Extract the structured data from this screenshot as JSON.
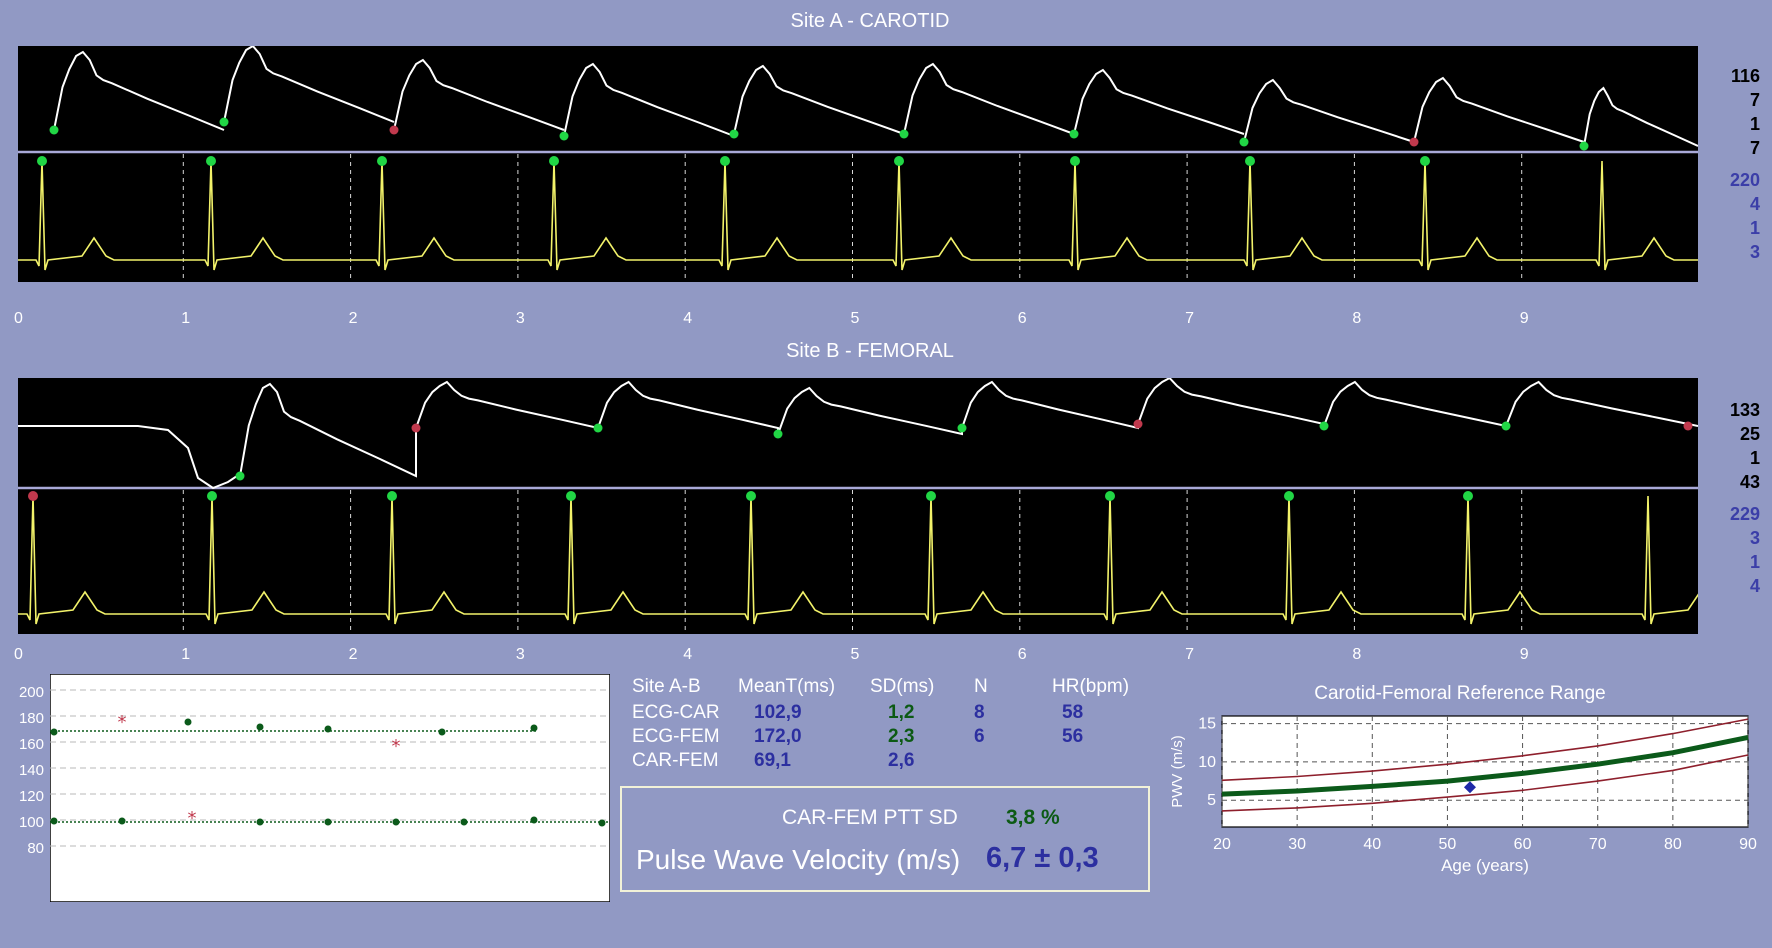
{
  "site_a": {
    "title": "Site A - CAROTID",
    "right_values_black": [
      "116",
      "7",
      "1",
      "7"
    ],
    "right_values_blue": [
      "220",
      "4",
      "1",
      "3"
    ],
    "axis_ticks": [
      "0",
      "1",
      "2",
      "3",
      "4",
      "5",
      "6",
      "7",
      "8",
      "9"
    ]
  },
  "site_b": {
    "title": "Site B - FEMORAL",
    "right_values_black": [
      "133",
      "25",
      "1",
      "43"
    ],
    "right_values_blue": [
      "229",
      "3",
      "1",
      "4"
    ],
    "axis_ticks": [
      "0",
      "1",
      "2",
      "3",
      "4",
      "5",
      "6",
      "7",
      "8",
      "9"
    ]
  },
  "ptt_plot": {
    "y_ticks": [
      "200",
      "180",
      "160",
      "140",
      "120",
      "100",
      "80"
    ]
  },
  "stats": {
    "headers": [
      "Site A-B",
      "MeanT(ms)",
      "SD(ms)",
      "N",
      "HR(bpm)"
    ],
    "rows": [
      {
        "site": "ECG-CAR",
        "mean": "102,9",
        "sd": "1,2",
        "n": "8",
        "hr": "58"
      },
      {
        "site": "ECG-FEM",
        "mean": "172,0",
        "sd": "2,3",
        "n": "6",
        "hr": "56"
      },
      {
        "site": "CAR-FEM",
        "mean": "69,1",
        "sd": "2,6",
        "n": "",
        "hr": ""
      }
    ]
  },
  "result": {
    "ptt_sd_label": "CAR-FEM PTT SD",
    "ptt_sd_value": "3,8 %",
    "pwv_label": "Pulse Wave Velocity (m/s)",
    "pwv_value": "6,7 ± 0,3"
  },
  "chart_data": {
    "type": "line",
    "title": "Carotid-Femoral Reference Range",
    "xlabel": "Age (years)",
    "ylabel": "PWV (m/s)",
    "x_ticks": [
      "20",
      "30",
      "40",
      "50",
      "60",
      "70",
      "80",
      "90"
    ],
    "y_ticks": [
      "5",
      "10",
      "15"
    ],
    "xlim": [
      20,
      90
    ],
    "ylim": [
      1.5,
      16
    ],
    "grid": true,
    "series": [
      {
        "x": [
          20,
          30,
          40,
          50,
          60,
          70,
          80,
          90
        ],
        "values": [
          5.8,
          6.2,
          6.8,
          7.5,
          8.5,
          9.7,
          11.2,
          13.2
        ],
        "color": "#0b5a1a"
      },
      {
        "x": [
          20,
          30,
          40,
          50,
          60,
          70,
          80,
          90
        ],
        "values": [
          7.6,
          8.1,
          8.8,
          9.7,
          10.8,
          12.1,
          13.7,
          15.6
        ],
        "color": "#8e1f2c"
      },
      {
        "x": [
          20,
          30,
          40,
          50,
          60,
          70,
          80,
          90
        ],
        "values": [
          3.6,
          4.0,
          4.6,
          5.4,
          6.3,
          7.5,
          8.9,
          10.9
        ],
        "color": "#8e1f2c"
      }
    ],
    "points": [
      {
        "x": 53,
        "y": 6.7,
        "color": "#1f2aa8"
      }
    ]
  },
  "colors": {
    "panel_bg": "#9199c4",
    "pressure_trace": "#ffffff",
    "ecg_trace": "#f2f26a",
    "marker_green": "#21d645",
    "marker_red": "#c0394d"
  }
}
